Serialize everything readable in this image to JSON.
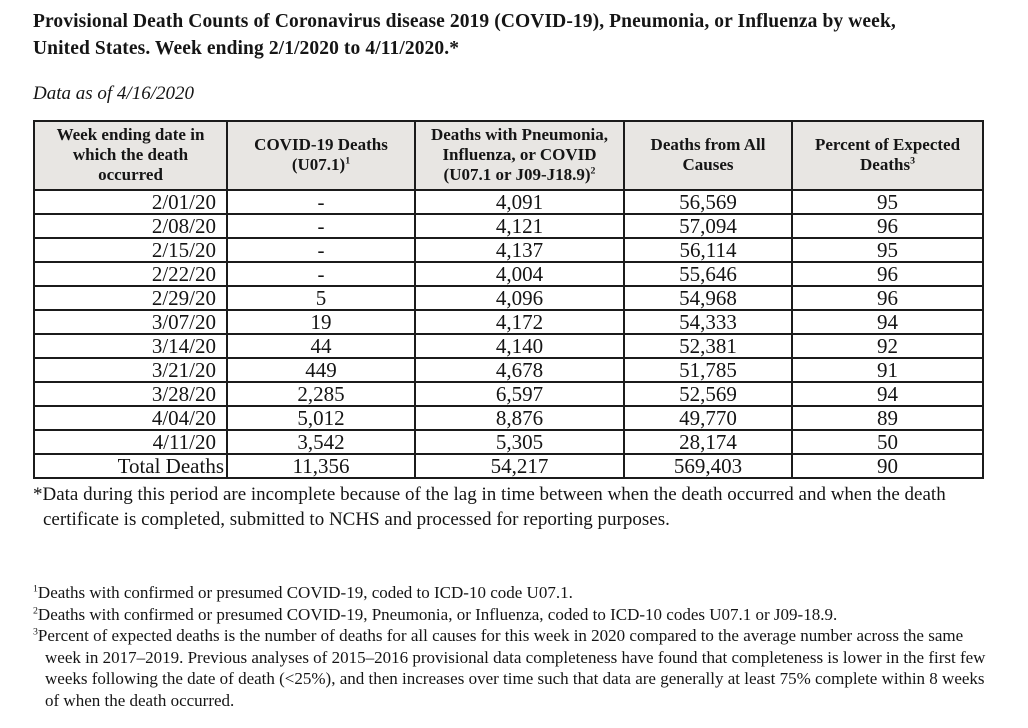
{
  "page": {
    "title_lines": [
      "Provisional Death Counts of Coronavirus disease 2019 (COVID-19), Pneumonia, or Influenza by week,",
      "United States. Week ending 2/1/2020 to 4/11/2020.*"
    ],
    "data_as_of": "Data as of 4/16/2020"
  },
  "colors": {
    "background": "#ffffff",
    "text": "#151515",
    "table_border": "#1b1b1b",
    "header_background": "#e8e6e3"
  },
  "table": {
    "column_keys": [
      "week",
      "covid_deaths",
      "pneumonia_influenza_covid_deaths",
      "all_causes_deaths",
      "percent_expected_deaths"
    ],
    "columns": [
      {
        "lines": [
          "Week ending date in",
          "which the death",
          "occurred"
        ],
        "sup": ""
      },
      {
        "lines": [
          "COVID-19 Deaths",
          "(U07.1)"
        ],
        "sup": "1"
      },
      {
        "lines": [
          "Deaths with Pneumonia,",
          "Influenza, or COVID",
          "(U07.1 or J09-J18.9)"
        ],
        "sup": "2"
      },
      {
        "lines": [
          "Deaths from All",
          "Causes"
        ],
        "sup": ""
      },
      {
        "lines": [
          "Percent of Expected",
          "Deaths"
        ],
        "sup": "3"
      }
    ],
    "rows": [
      {
        "cells": [
          "2/01/20",
          "-",
          "4,091",
          "56,569",
          "95"
        ]
      },
      {
        "cells": [
          "2/08/20",
          "-",
          "4,121",
          "57,094",
          "96"
        ]
      },
      {
        "cells": [
          "2/15/20",
          "-",
          "4,137",
          "56,114",
          "95"
        ]
      },
      {
        "cells": [
          "2/22/20",
          "-",
          "4,004",
          "55,646",
          "96"
        ]
      },
      {
        "cells": [
          "2/29/20",
          "5",
          "4,096",
          "54,968",
          "96"
        ]
      },
      {
        "cells": [
          "3/07/20",
          "19",
          "4,172",
          "54,333",
          "94"
        ]
      },
      {
        "cells": [
          "3/14/20",
          "44",
          "4,140",
          "52,381",
          "92"
        ]
      },
      {
        "cells": [
          "3/21/20",
          "449",
          "4,678",
          "51,785",
          "91"
        ]
      },
      {
        "cells": [
          "3/28/20",
          "2,285",
          "6,597",
          "52,569",
          "94"
        ]
      },
      {
        "cells": [
          "4/04/20",
          "5,012",
          "8,876",
          "49,770",
          "89"
        ]
      },
      {
        "cells": [
          "4/11/20",
          "3,542",
          "5,305",
          "28,174",
          "50"
        ]
      },
      {
        "cells": [
          "Total Deaths",
          "11,356",
          "54,217",
          "569,403",
          "90"
        ],
        "is_total": true
      }
    ]
  },
  "footnotes": {
    "star_marker": "*",
    "star_text": "Data during this period are incomplete because of the lag in time between when the death occurred and when the death certificate is completed, submitted to NCHS and processed for reporting purposes.",
    "numbered": [
      {
        "marker": "1",
        "text": "Deaths with confirmed or presumed COVID-19, coded to ICD-10 code U07.1."
      },
      {
        "marker": "2",
        "text": "Deaths with confirmed or presumed COVID-19, Pneumonia, or Influenza, coded to ICD-10 codes U07.1 or J09-18.9."
      },
      {
        "marker": "3",
        "text": "Percent of expected deaths is the number of deaths for all causes for this week in 2020 compared to the average number across the same week in 2017–2019. Previous analyses of 2015–2016 provisional data completeness have found that completeness is lower in the first few weeks following the date of death (<25%), and then increases over time such that data are generally at least 75% complete within 8 weeks of when the death occurred."
      }
    ]
  }
}
